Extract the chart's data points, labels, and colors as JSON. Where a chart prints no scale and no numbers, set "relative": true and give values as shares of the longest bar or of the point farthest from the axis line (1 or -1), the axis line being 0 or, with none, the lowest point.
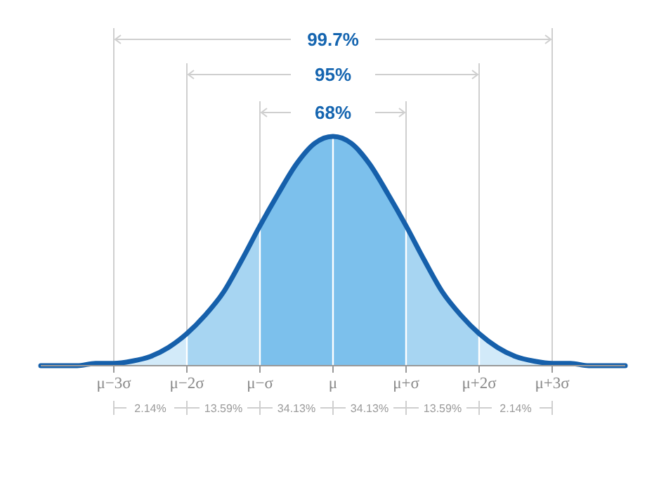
{
  "chart_data": {
    "type": "area",
    "relative": true,
    "grid": "x",
    "categories": [
      null,
      null,
      null,
      null,
      "μ−3σ",
      null,
      null,
      null,
      "μ−2σ",
      null,
      null,
      null,
      "μ−σ",
      null,
      null,
      null,
      "μ",
      null,
      null,
      null,
      "μ+σ",
      null,
      null,
      null,
      "μ+2σ",
      null,
      null,
      null,
      "μ+3σ",
      null,
      null,
      null,
      null
    ],
    "series": [
      {
        "color": "#d2eaf9",
        "values": [
          null,
          null,
          null,
          null,
          0.01,
          0.02,
          0.04,
          0.08,
          0.14,
          null,
          null,
          null,
          null,
          null,
          null,
          null,
          null,
          null,
          null,
          null,
          null,
          null,
          null,
          null,
          null,
          null,
          null,
          null,
          null,
          null,
          null,
          null,
          null
        ]
      },
      {
        "color": "#a7d5f2",
        "values": [
          null,
          null,
          null,
          null,
          null,
          null,
          null,
          null,
          0.14,
          0.22,
          0.32,
          0.46,
          0.61,
          null,
          null,
          null,
          null,
          null,
          null,
          null,
          null,
          null,
          null,
          null,
          null,
          null,
          null,
          null,
          null,
          null,
          null,
          null,
          null
        ]
      },
      {
        "color": "#7cc0ec",
        "values": [
          null,
          null,
          null,
          null,
          null,
          null,
          null,
          null,
          null,
          null,
          null,
          null,
          0.61,
          0.75,
          0.88,
          0.97,
          1,
          null,
          null,
          null,
          null,
          null,
          null,
          null,
          null,
          null,
          null,
          null,
          null,
          null,
          null,
          null,
          null
        ]
      },
      {
        "color": "#7cc0ec",
        "values": [
          null,
          null,
          null,
          null,
          null,
          null,
          null,
          null,
          null,
          null,
          null,
          null,
          null,
          null,
          null,
          null,
          1,
          0.97,
          0.88,
          0.75,
          0.61,
          null,
          null,
          null,
          null,
          null,
          null,
          null,
          null,
          null,
          null,
          null,
          null
        ]
      },
      {
        "color": "#a7d5f2",
        "values": [
          null,
          null,
          null,
          null,
          null,
          null,
          null,
          null,
          null,
          null,
          null,
          null,
          null,
          null,
          null,
          null,
          null,
          null,
          null,
          null,
          0.61,
          0.46,
          0.32,
          0.22,
          0.14,
          null,
          null,
          null,
          null,
          null,
          null,
          null,
          null
        ]
      },
      {
        "color": "#d2eaf9",
        "values": [
          null,
          null,
          null,
          null,
          null,
          null,
          null,
          null,
          null,
          null,
          null,
          null,
          null,
          null,
          null,
          null,
          null,
          null,
          null,
          null,
          null,
          null,
          null,
          null,
          0.14,
          0.08,
          0.04,
          0.02,
          0.01,
          null,
          null,
          null,
          null
        ]
      },
      {
        "type": "line",
        "color": "#1660ab",
        "values": [
          0,
          0,
          0,
          0.01,
          0.01,
          0.02,
          0.04,
          0.08,
          0.14,
          0.22,
          0.32,
          0.46,
          0.61,
          0.75,
          0.88,
          0.97,
          1,
          0.97,
          0.88,
          0.75,
          0.61,
          0.46,
          0.32,
          0.22,
          0.14,
          0.08,
          0.04,
          0.02,
          0.01,
          0.01,
          0,
          0,
          0
        ]
      }
    ],
    "annotations": [
      "99.7%",
      "95%",
      "68%",
      "2.14%",
      "13.59%",
      "34.13%",
      "34.13%",
      "13.59%",
      "2.14%"
    ]
  }
}
